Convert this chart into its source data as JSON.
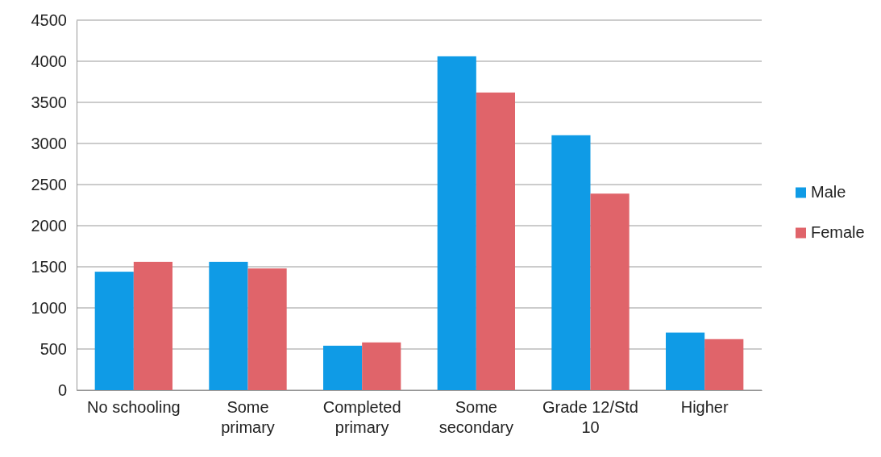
{
  "chart_data": {
    "type": "bar",
    "categories": [
      "No schooling",
      "Some primary",
      "Completed primary",
      "Some secondary",
      "Grade 12/Std 10",
      "Higher"
    ],
    "series": [
      {
        "name": "Male",
        "color": "#0f9be6",
        "values": [
          1440,
          1560,
          540,
          4060,
          3100,
          700
        ]
      },
      {
        "name": "Female",
        "color": "#e0646a",
        "values": [
          1560,
          1480,
          580,
          3620,
          2390,
          620
        ]
      }
    ],
    "ylim": [
      0,
      4500
    ],
    "yticks": [
      0,
      500,
      1000,
      1500,
      2000,
      2500,
      3000,
      3500,
      4000,
      4500
    ],
    "grid": "y",
    "legend": "right"
  }
}
